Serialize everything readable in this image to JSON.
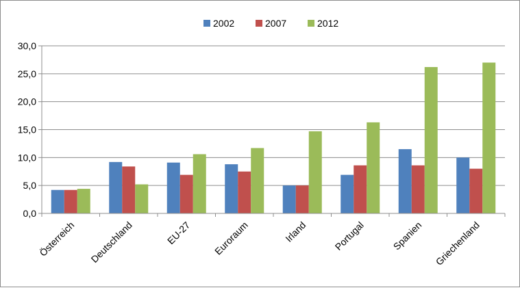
{
  "chart_data": {
    "type": "bar",
    "title": "",
    "xlabel": "",
    "ylabel": "",
    "ylim": [
      0,
      30
    ],
    "yticks": [
      "0,0",
      "5,0",
      "10,0",
      "15,0",
      "20,0",
      "25,0",
      "30,0"
    ],
    "grid": true,
    "legend_position": "top",
    "categories": [
      "Österreich",
      "Deutschland",
      "EU-27",
      "Euroraum",
      "Irland",
      "Portugal",
      "Spanien",
      "Griechenland"
    ],
    "series": [
      {
        "name": "2002",
        "color": "#4f81bd",
        "values": [
          4.2,
          9.2,
          9.1,
          8.8,
          5.0,
          6.9,
          11.5,
          10.0
        ]
      },
      {
        "name": "2007",
        "color": "#c0504d",
        "values": [
          4.2,
          8.4,
          6.9,
          7.5,
          5.0,
          8.6,
          8.6,
          8.0
        ]
      },
      {
        "name": "2012",
        "color": "#9bbb59",
        "values": [
          4.4,
          5.2,
          10.6,
          11.7,
          14.7,
          16.3,
          26.2,
          27.0
        ]
      }
    ]
  }
}
